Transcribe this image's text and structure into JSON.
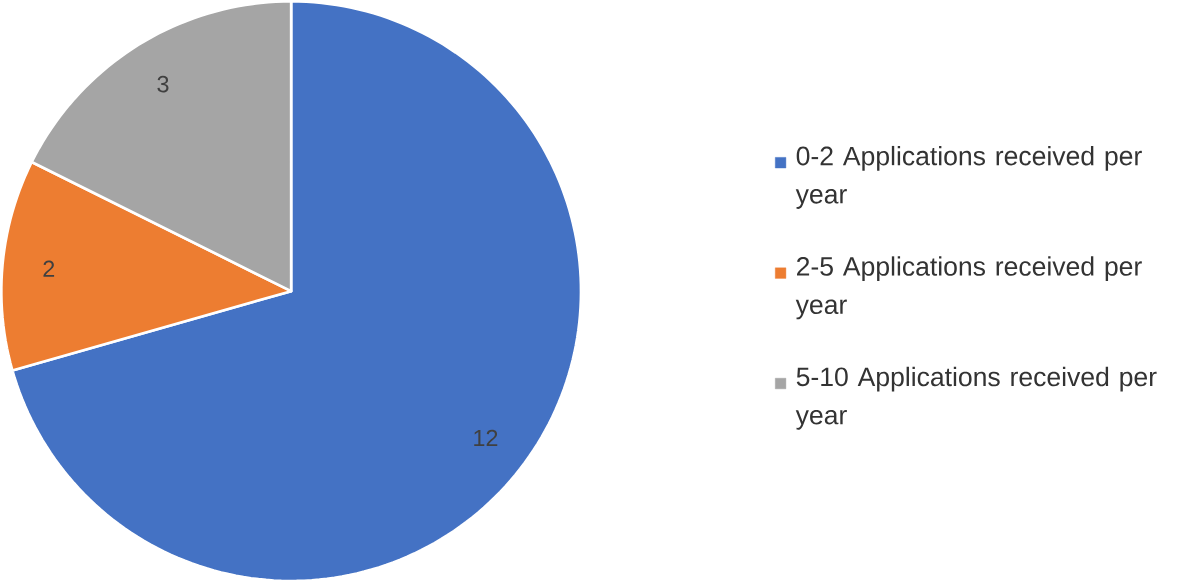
{
  "chart_data": {
    "type": "pie",
    "categories": [
      "0-2 Applications received per year",
      "2-5 Applications received per year",
      "5-10 Applications received per year"
    ],
    "values": [
      12,
      2,
      3
    ],
    "colors": [
      "#4472c4",
      "#ed7d31",
      "#a5a5a5"
    ],
    "data_labels": true,
    "legend": "right"
  }
}
